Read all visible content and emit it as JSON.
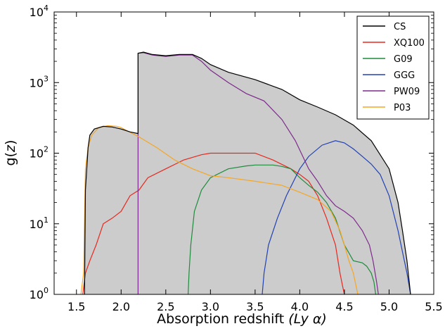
{
  "chart_data": {
    "type": "line",
    "xlabel_text": "Absorption redshift ",
    "xlabel_math": "(Ly α)",
    "ylabel_text": "g(",
    "ylabel_var": "z",
    "ylabel_close": ")",
    "xlim": [
      1.25,
      5.5
    ],
    "ylim": [
      1,
      10000
    ],
    "yscale": "log",
    "x_ticks": [
      1.5,
      2.0,
      2.5,
      3.0,
      3.5,
      4.0,
      4.5,
      5.0,
      5.5
    ],
    "x_tick_labels": [
      "1.5",
      "2.0",
      "2.5",
      "3.0",
      "3.5",
      "4.0",
      "4.5",
      "5.0",
      "5.5"
    ],
    "y_ticks": [
      {
        "base": "10",
        "exp": "0",
        "value": 1
      },
      {
        "base": "10",
        "exp": "1",
        "value": 10
      },
      {
        "base": "10",
        "exp": "2",
        "value": 100
      },
      {
        "base": "10",
        "exp": "3",
        "value": 1000
      },
      {
        "base": "10",
        "exp": "4",
        "value": 10000
      }
    ],
    "legend_position": "top-right",
    "fill_color": "#cccccc",
    "series": [
      {
        "name": "CS",
        "color": "#000000",
        "x": [
          1.59,
          1.6,
          1.63,
          1.65,
          1.7,
          1.8,
          1.9,
          2.0,
          2.1,
          2.19,
          2.19,
          2.25,
          2.35,
          2.5,
          2.65,
          2.8,
          2.9,
          3.0,
          3.2,
          3.5,
          3.8,
          4.0,
          4.2,
          4.4,
          4.6,
          4.8,
          5.0,
          5.1,
          5.15,
          5.2,
          5.24
        ],
        "y": [
          1,
          30,
          120,
          180,
          220,
          240,
          235,
          220,
          200,
          190,
          2600,
          2700,
          2500,
          2400,
          2500,
          2500,
          2200,
          1800,
          1400,
          1100,
          800,
          570,
          450,
          350,
          250,
          150,
          60,
          20,
          8,
          3,
          1
        ]
      },
      {
        "name": "XQ100",
        "color": "#e8281e",
        "x": [
          1.57,
          1.6,
          1.65,
          1.72,
          1.8,
          1.9,
          2.0,
          2.1,
          2.2,
          2.3,
          2.5,
          2.7,
          2.9,
          3.0,
          3.2,
          3.5,
          3.7,
          3.9,
          4.0,
          4.1,
          4.2,
          4.3,
          4.4,
          4.45,
          4.48,
          4.5
        ],
        "y": [
          1,
          2,
          3,
          5,
          10,
          12,
          15,
          25,
          30,
          45,
          60,
          80,
          95,
          100,
          100,
          100,
          80,
          60,
          50,
          40,
          25,
          12,
          5,
          2,
          1.3,
          1
        ]
      },
      {
        "name": "G09",
        "color": "#1e8c3c",
        "x": [
          2.75,
          2.76,
          2.78,
          2.82,
          2.9,
          3.0,
          3.2,
          3.4,
          3.5,
          3.6,
          3.7,
          3.8,
          3.9,
          4.0,
          4.1,
          4.2,
          4.3,
          4.4,
          4.5,
          4.6,
          4.7,
          4.75,
          4.8,
          4.83,
          4.85
        ],
        "y": [
          1,
          2,
          5,
          15,
          30,
          45,
          60,
          66,
          68,
          68,
          68,
          65,
          60,
          45,
          35,
          28,
          20,
          12,
          5,
          3,
          2.8,
          2.5,
          2,
          1.5,
          1
        ]
      },
      {
        "name": "GGG",
        "color": "#2141b5",
        "x": [
          3.58,
          3.6,
          3.65,
          3.75,
          3.85,
          4.0,
          4.1,
          4.25,
          4.4,
          4.5,
          4.6,
          4.7,
          4.8,
          4.9,
          5.0,
          5.1,
          5.15,
          5.2,
          5.24
        ],
        "y": [
          1,
          2,
          5,
          12,
          25,
          60,
          90,
          130,
          150,
          140,
          115,
          90,
          70,
          50,
          25,
          8,
          4,
          2,
          1
        ]
      },
      {
        "name": "PW09",
        "color": "#7d2a8c",
        "x": [
          2.19,
          2.19,
          2.25,
          2.35,
          2.5,
          2.65,
          2.8,
          2.9,
          3.0,
          3.2,
          3.4,
          3.6,
          3.8,
          3.95,
          4.1,
          4.2,
          4.3,
          4.4,
          4.5,
          4.6,
          4.7,
          4.78,
          4.82,
          4.86,
          4.88
        ],
        "y": [
          1,
          2600,
          2650,
          2450,
          2350,
          2450,
          2450,
          2000,
          1500,
          1000,
          700,
          550,
          300,
          150,
          60,
          40,
          25,
          18,
          15,
          12,
          8,
          5,
          3,
          1.5,
          1
        ]
      },
      {
        "name": "P03",
        "color": "#f5a623",
        "x": [
          1.55,
          1.58,
          1.6,
          1.63,
          1.67,
          1.75,
          1.85,
          1.95,
          2.0,
          2.2,
          2.4,
          2.6,
          2.8,
          3.0,
          3.2,
          3.5,
          3.8,
          4.0,
          4.2,
          4.35,
          4.45,
          4.5,
          4.55,
          4.6,
          4.65
        ],
        "y": [
          1,
          2,
          60,
          120,
          180,
          230,
          245,
          240,
          230,
          170,
          120,
          80,
          60,
          48,
          45,
          40,
          35,
          28,
          22,
          15,
          8,
          5,
          3,
          2,
          1
        ]
      }
    ]
  }
}
